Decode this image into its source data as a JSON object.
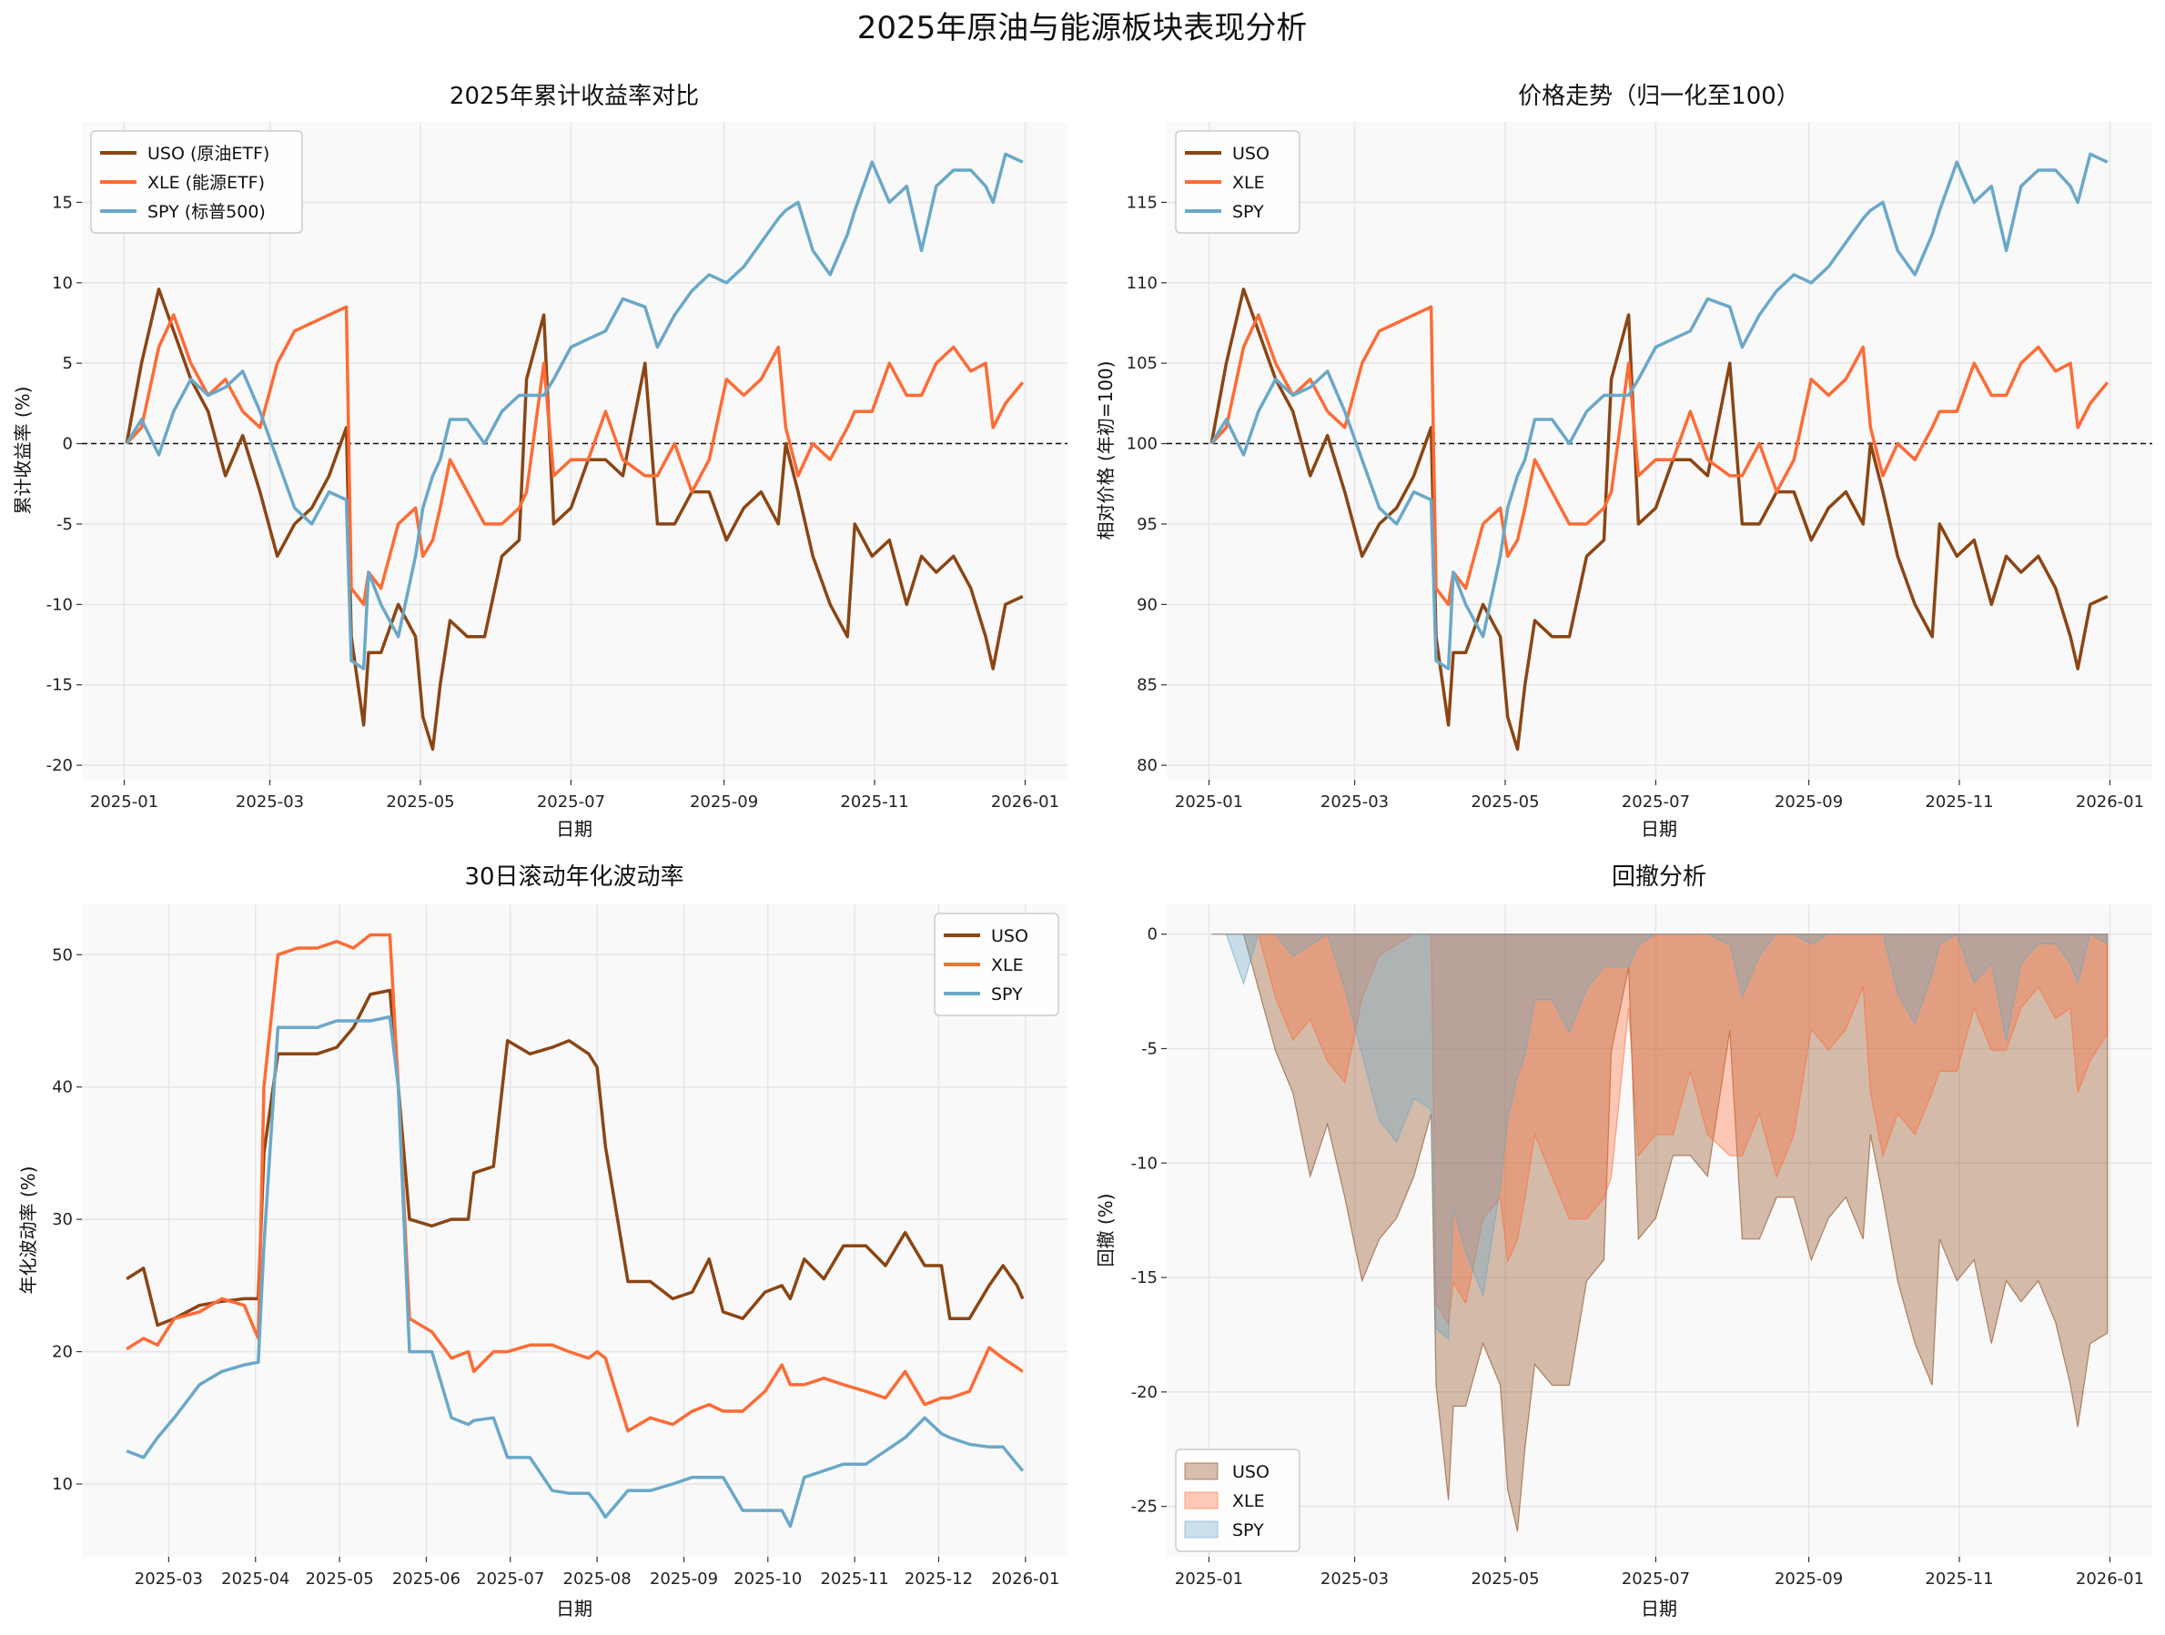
{
  "figure": {
    "suptitle": "2025年原油与能源板块表现分析"
  },
  "colors": {
    "USO": "#8B4513",
    "XLE": "#FF6B35",
    "SPY": "#6AA8C8",
    "axes_bg": "#F9F9F9",
    "grid": "#E6E6E6"
  },
  "chart_data": [
    {
      "type": "line",
      "title": "2025年累计收益率对比",
      "xlabel": "日期",
      "ylabel": "累计收益率 (%)",
      "ylim": [
        -20.9,
        20
      ],
      "yticks": [
        -20,
        -15,
        -10,
        -5,
        0,
        5,
        10,
        15
      ],
      "xticks": [
        "2025-01",
        "2025-03",
        "2025-05",
        "2025-07",
        "2025-09",
        "2025-11",
        "2026-01"
      ],
      "reference_line": 0,
      "grid": true,
      "legend": "upper-left",
      "x": [
        "2025-01-02",
        "2025-01-08",
        "2025-01-15",
        "2025-01-21",
        "2025-01-28",
        "2025-02-04",
        "2025-02-11",
        "2025-02-18",
        "2025-02-25",
        "2025-03-04",
        "2025-03-11",
        "2025-03-18",
        "2025-03-25",
        "2025-04-01",
        "2025-04-03",
        "2025-04-08",
        "2025-04-10",
        "2025-04-15",
        "2025-04-22",
        "2025-04-29",
        "2025-05-02",
        "2025-05-06",
        "2025-05-09",
        "2025-05-13",
        "2025-05-20",
        "2025-05-27",
        "2025-06-03",
        "2025-06-10",
        "2025-06-13",
        "2025-06-20",
        "2025-06-24",
        "2025-07-01",
        "2025-07-08",
        "2025-07-15",
        "2025-07-22",
        "2025-07-31",
        "2025-08-05",
        "2025-08-12",
        "2025-08-19",
        "2025-08-26",
        "2025-09-02",
        "2025-09-09",
        "2025-09-16",
        "2025-09-23",
        "2025-09-26",
        "2025-10-01",
        "2025-10-07",
        "2025-10-14",
        "2025-10-21",
        "2025-10-24",
        "2025-10-31",
        "2025-11-07",
        "2025-11-14",
        "2025-11-20",
        "2025-11-26",
        "2025-12-03",
        "2025-12-10",
        "2025-12-16",
        "2025-12-19",
        "2025-12-24",
        "2025-12-31"
      ],
      "series": [
        {
          "name": "USO (原油ETF)",
          "key": "USO",
          "values": [
            0,
            5,
            9.6,
            7,
            4,
            2,
            -2,
            0.5,
            -3,
            -7,
            -5,
            -4,
            -2,
            1,
            -12,
            -17.5,
            -13,
            -13,
            -10,
            -12,
            -17,
            -19,
            -15,
            -11,
            -12,
            -12,
            -7,
            -6,
            4,
            8,
            -5,
            -4,
            -1,
            -1,
            -2,
            5,
            -5,
            -5,
            -3,
            -3,
            -6,
            -4,
            -3,
            -5,
            0,
            -3,
            -7,
            -10,
            -12,
            -5,
            -7,
            -6,
            -10,
            -7,
            -8,
            -7,
            -9,
            -12,
            -14,
            -10,
            -9.5
          ]
        },
        {
          "name": "XLE (能源ETF)",
          "key": "XLE",
          "values": [
            0,
            1,
            6,
            8,
            5,
            3,
            4,
            2,
            1,
            5,
            7,
            7.5,
            8,
            8.5,
            -9,
            -10,
            -8,
            -9,
            -5,
            -4,
            -7,
            -6,
            -4,
            -1,
            -3,
            -5,
            -5,
            -4,
            -3,
            5,
            -2,
            -1,
            -1,
            2,
            -1,
            -2,
            -2,
            0,
            -3,
            -1,
            4,
            3,
            4,
            6,
            1,
            -2,
            0,
            -1,
            1,
            2,
            2,
            5,
            3,
            3,
            5,
            6,
            4.5,
            5,
            1,
            2.5,
            3.8
          ]
        },
        {
          "name": "SPY (标普500)",
          "key": "SPY",
          "values": [
            0,
            1.5,
            -0.7,
            2,
            4,
            3,
            3.5,
            4.5,
            2,
            -1,
            -4,
            -5,
            -3,
            -3.5,
            -13.5,
            -14,
            -8,
            -10,
            -12,
            -7,
            -4,
            -2,
            -1,
            1.5,
            1.5,
            0,
            2,
            3,
            3,
            3,
            4,
            6,
            6.5,
            7,
            9,
            8.5,
            6,
            8,
            9.5,
            10.5,
            10,
            11,
            12.5,
            14,
            14.5,
            15,
            12,
            10.5,
            13,
            14.5,
            17.5,
            15,
            16,
            12,
            16,
            17,
            17,
            16,
            15,
            18,
            17.5
          ]
        }
      ]
    },
    {
      "type": "line",
      "title": "价格走势（归一化至100）",
      "xlabel": "日期",
      "ylabel": "相对价格 (年初=100)",
      "ylim": [
        79.1,
        120
      ],
      "yticks": [
        80,
        85,
        90,
        95,
        100,
        105,
        110,
        115
      ],
      "xticks": [
        "2025-01",
        "2025-03",
        "2025-05",
        "2025-07",
        "2025-09",
        "2025-11",
        "2026-01"
      ],
      "reference_line": 100,
      "grid": true,
      "legend": "upper-left",
      "x_same_as": "chart 1",
      "series": [
        {
          "name": "USO",
          "key": "USO",
          "values": [
            100,
            105,
            109.6,
            107,
            104,
            102,
            98,
            100.5,
            97,
            93,
            95,
            96,
            98,
            101,
            88,
            82.5,
            87,
            87,
            90,
            88,
            83,
            81,
            85,
            89,
            88,
            88,
            93,
            94,
            104,
            108,
            95,
            96,
            99,
            99,
            98,
            105,
            95,
            95,
            97,
            97,
            94,
            96,
            97,
            95,
            100,
            97,
            93,
            90,
            88,
            95,
            93,
            94,
            90,
            93,
            92,
            93,
            91,
            88,
            86,
            90,
            90.5
          ]
        },
        {
          "name": "XLE",
          "key": "XLE",
          "values": [
            100,
            101,
            106,
            108,
            105,
            103,
            104,
            102,
            101,
            105,
            107,
            107.5,
            108,
            108.5,
            91,
            90,
            92,
            91,
            95,
            96,
            93,
            94,
            96,
            99,
            97,
            95,
            95,
            96,
            97,
            105,
            98,
            99,
            99,
            102,
            99,
            98,
            98,
            100,
            97,
            99,
            104,
            103,
            104,
            106,
            101,
            98,
            100,
            99,
            101,
            102,
            102,
            105,
            103,
            103,
            105,
            106,
            104.5,
            105,
            101,
            102.5,
            103.8
          ]
        },
        {
          "name": "SPY",
          "key": "SPY",
          "values": [
            100,
            101.5,
            99.3,
            102,
            104,
            103,
            103.5,
            104.5,
            102,
            99,
            96,
            95,
            97,
            96.5,
            86.5,
            86,
            92,
            90,
            88,
            93,
            96,
            98,
            99,
            101.5,
            101.5,
            100,
            102,
            103,
            103,
            103,
            104,
            106,
            106.5,
            107,
            109,
            108.5,
            106,
            108,
            109.5,
            110.5,
            110,
            111,
            112.5,
            114,
            114.5,
            115,
            112,
            110.5,
            113,
            114.5,
            117.5,
            115,
            116,
            112,
            116,
            117,
            117,
            116,
            115,
            118,
            117.5
          ]
        }
      ]
    },
    {
      "type": "line",
      "title": "30日滚动年化波动率",
      "xlabel": "日期",
      "ylabel": "年化波动率 (%)",
      "ylim": [
        4.5,
        53.8
      ],
      "yticks": [
        10,
        20,
        30,
        40,
        50
      ],
      "xticks": [
        "2025-03",
        "2025-04",
        "2025-05",
        "2025-06",
        "2025-07",
        "2025-08",
        "2025-09",
        "2025-10",
        "2025-11",
        "2025-12",
        "2026-01"
      ],
      "grid": true,
      "legend": "upper-right",
      "x": [
        "2025-02-14",
        "2025-02-20",
        "2025-02-25",
        "2025-03-03",
        "2025-03-12",
        "2025-03-20",
        "2025-03-28",
        "2025-04-02",
        "2025-04-04",
        "2025-04-09",
        "2025-04-16",
        "2025-04-23",
        "2025-04-30",
        "2025-05-06",
        "2025-05-12",
        "2025-05-19",
        "2025-05-22",
        "2025-05-26",
        "2025-06-03",
        "2025-06-10",
        "2025-06-16",
        "2025-06-18",
        "2025-06-25",
        "2025-06-30",
        "2025-07-08",
        "2025-07-16",
        "2025-07-22",
        "2025-07-29",
        "2025-08-01",
        "2025-08-04",
        "2025-08-12",
        "2025-08-20",
        "2025-08-28",
        "2025-09-04",
        "2025-09-10",
        "2025-09-15",
        "2025-09-22",
        "2025-09-30",
        "2025-10-06",
        "2025-10-09",
        "2025-10-14",
        "2025-10-21",
        "2025-10-28",
        "2025-11-05",
        "2025-11-12",
        "2025-11-19",
        "2025-11-26",
        "2025-12-02",
        "2025-12-05",
        "2025-12-12",
        "2025-12-19",
        "2025-12-24",
        "2025-12-29",
        "2025-12-31"
      ],
      "series": [
        {
          "name": "USO",
          "key": "USO",
          "values": [
            25.5,
            26.3,
            22,
            22.5,
            23.5,
            23.8,
            24,
            24,
            35,
            42.5,
            42.5,
            42.5,
            43,
            44.5,
            47,
            47.3,
            40,
            30,
            29.5,
            30,
            30,
            33.5,
            34,
            43.5,
            42.5,
            43,
            43.5,
            42.5,
            41.5,
            35.5,
            25.3,
            25.3,
            24,
            24.5,
            27,
            23,
            22.5,
            24.5,
            25,
            24,
            27,
            25.5,
            28,
            28,
            26.5,
            29,
            26.5,
            26.5,
            22.5,
            22.5,
            25,
            26.5,
            25,
            24
          ]
        },
        {
          "name": "XLE",
          "key": "XLE",
          "values": [
            20.2,
            21,
            20.5,
            22.5,
            23,
            24,
            23.5,
            21,
            40,
            50,
            50.5,
            50.5,
            51,
            50.5,
            51.5,
            51.5,
            40,
            22.5,
            21.5,
            19.5,
            20,
            18.5,
            20,
            20,
            20.5,
            20.5,
            20,
            19.5,
            20,
            19.5,
            14,
            15,
            14.5,
            15.5,
            16,
            15.5,
            15.5,
            17,
            19,
            17.5,
            17.5,
            18,
            17.5,
            17,
            16.5,
            18.5,
            16,
            16.5,
            16.5,
            17,
            20.3,
            19.5,
            18.8,
            18.5
          ]
        },
        {
          "name": "SPY",
          "key": "SPY",
          "values": [
            12.5,
            12,
            13.5,
            15,
            17.5,
            18.5,
            19,
            19.2,
            28,
            44.5,
            44.5,
            44.5,
            45,
            45,
            45,
            45.3,
            40,
            20,
            20,
            15,
            14.5,
            14.8,
            15,
            12,
            12,
            9.5,
            9.3,
            9.3,
            8.5,
            7.5,
            9.5,
            9.5,
            10,
            10.5,
            10.5,
            10.5,
            8,
            8,
            8,
            6.8,
            10.5,
            11,
            11.5,
            11.5,
            12.5,
            13.5,
            15,
            13.8,
            13.5,
            13,
            12.8,
            12.8,
            11.5,
            11
          ]
        }
      ]
    },
    {
      "type": "area",
      "title": "回撤分析",
      "xlabel": "日期",
      "ylabel": "回撤 (%)",
      "ylim": [
        -27.2,
        1.3
      ],
      "yticks": [
        -25,
        -20,
        -15,
        -10,
        -5,
        0
      ],
      "xticks": [
        "2025-01",
        "2025-03",
        "2025-05",
        "2025-07",
        "2025-09",
        "2025-11",
        "2026-01"
      ],
      "grid": true,
      "legend": "lower-left",
      "values_derived_from": "drawdown of chart 1 cumulative returns",
      "series": [
        {
          "name": "USO",
          "key": "USO"
        },
        {
          "name": "XLE",
          "key": "XLE"
        },
        {
          "name": "SPY",
          "key": "SPY"
        }
      ]
    }
  ]
}
